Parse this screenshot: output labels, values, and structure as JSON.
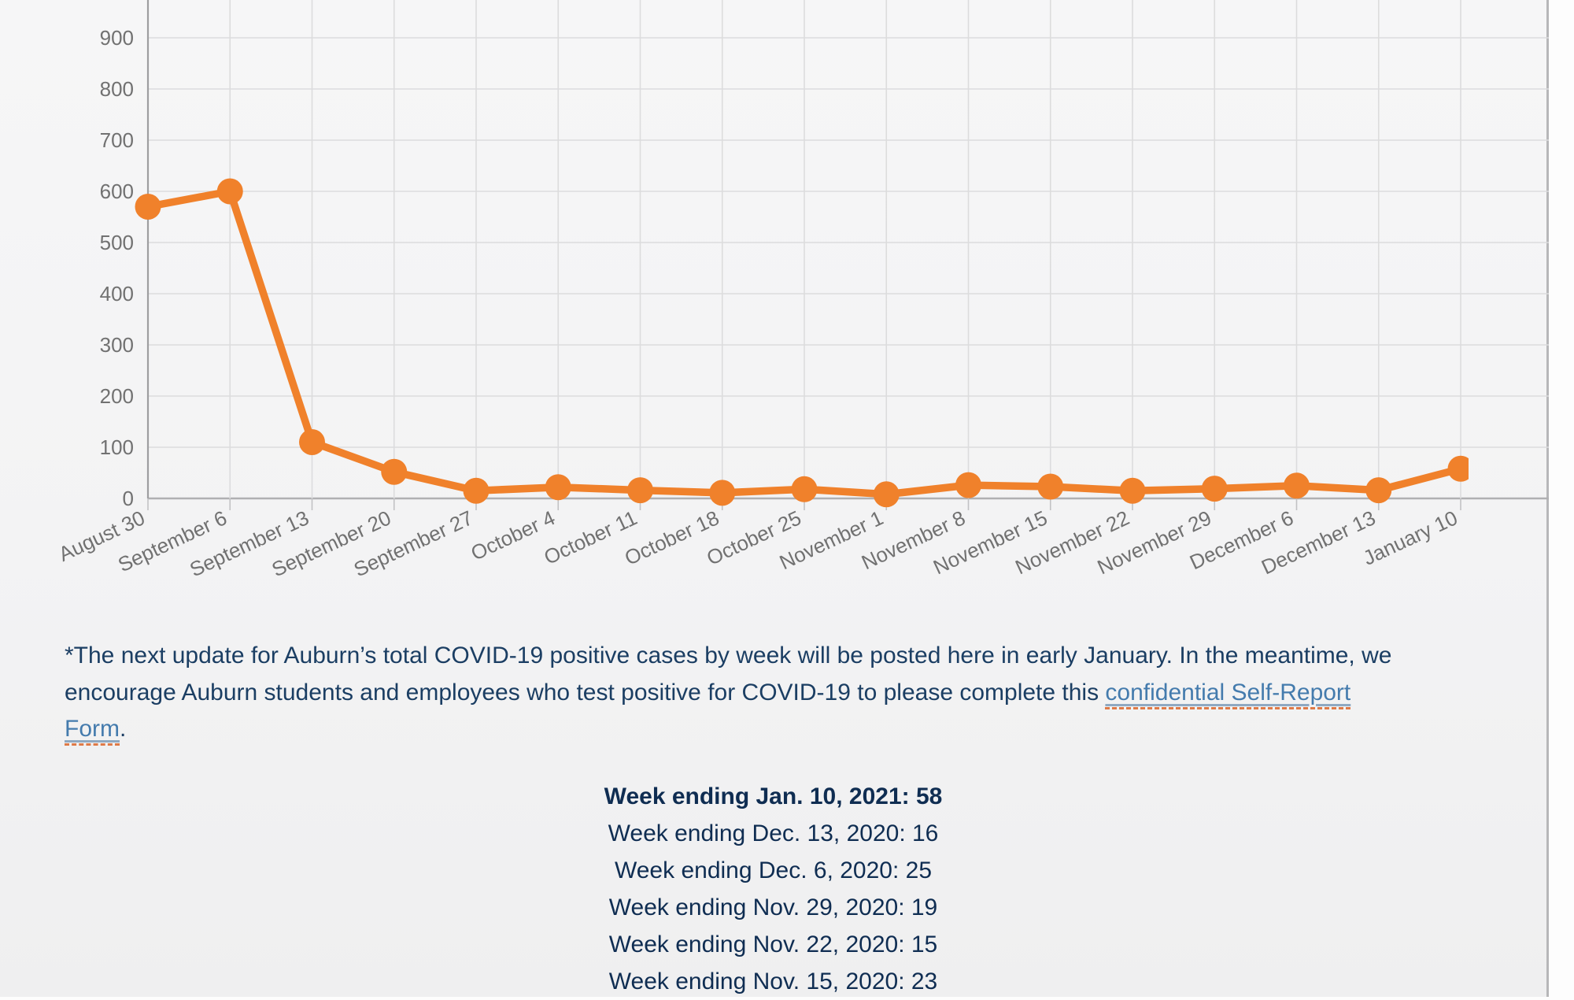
{
  "chart_data": {
    "type": "line",
    "title": "",
    "xlabel": "",
    "ylabel": "",
    "categories": [
      "August 30",
      "September 6",
      "September 13",
      "September 20",
      "September 27",
      "October 4",
      "October 11",
      "October 18",
      "October 25",
      "November 1",
      "November 8",
      "November 15",
      "November 22",
      "November 29",
      "December 6",
      "December 13",
      "January 10"
    ],
    "values": [
      570,
      600,
      110,
      52,
      15,
      22,
      16,
      11,
      18,
      8,
      26,
      23,
      15,
      19,
      25,
      16,
      58
    ],
    "ylim": [
      0,
      975
    ],
    "ytick_labels": [
      "0",
      "100",
      "200",
      "300",
      "400",
      "500",
      "600",
      "700",
      "800",
      "900"
    ],
    "grid": "on",
    "legend": "none",
    "line_color": "#F0812B",
    "point_color": "#F0812B",
    "grid_color": "#dcdcdd",
    "axis_line_color": "#9e9ea0",
    "zero_line_color": "#b0b0b2",
    "tick_label_color": "#717171"
  },
  "note": {
    "text_before_link": "*The next update for Auburn’s total COVID-19 positive cases by week will be posted here in early January. In the meantime, we encourage Auburn students and employees who test positive for COVID-19 to please complete this ",
    "link_text": "confidential Self-Report Form",
    "text_after_link": "."
  },
  "weekly_totals": [
    {
      "text": "Week ending Jan. 10, 2021: 58"
    },
    {
      "text": "Week ending Dec. 13, 2020: 16"
    },
    {
      "text": "Week ending Dec. 6, 2020: 25"
    },
    {
      "text": "Week ending Nov. 29, 2020: 19"
    },
    {
      "text": "Week ending Nov. 22, 2020: 15"
    },
    {
      "text": "Week ending Nov. 15, 2020: 23"
    }
  ]
}
